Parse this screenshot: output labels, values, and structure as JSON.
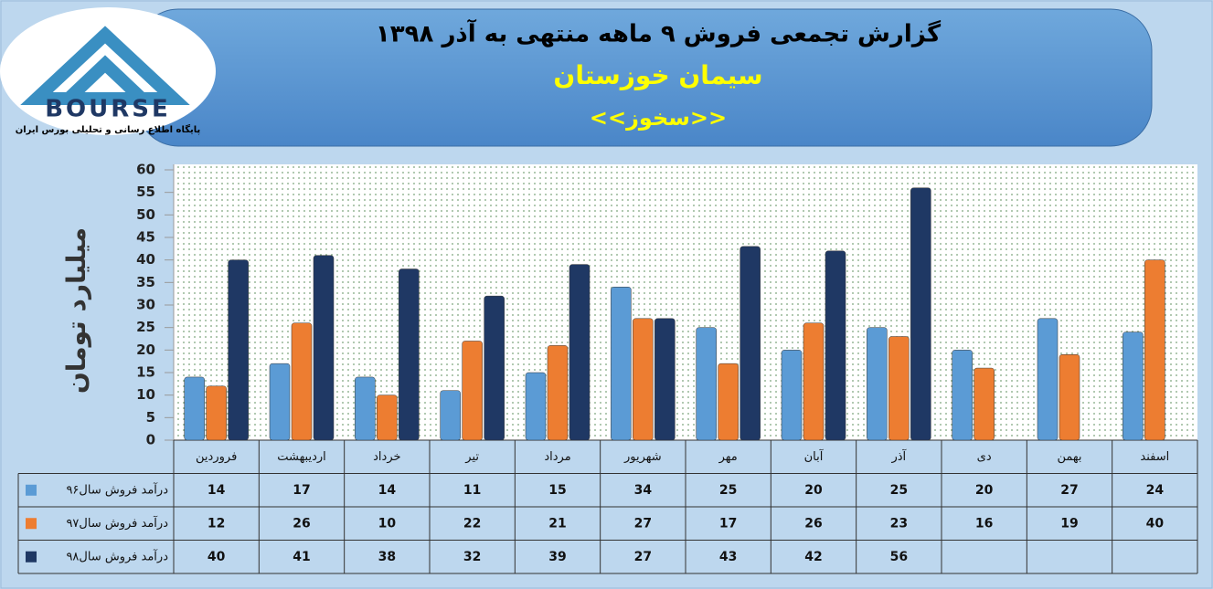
{
  "logo": {
    "name": "BOURSE",
    "caption": "پایگاه اطلاع رسانی و تحلیلی بورس ایران"
  },
  "chart_data": {
    "type": "bar",
    "title": "گزارش تجمعی فروش ۹ ماهه منتهی به آذر ۱۳۹۸",
    "subtitle": "سیمان خوزستان",
    "ticker": "<<سخوز>>",
    "y_label": "میلیارد تومان",
    "categories": [
      "فروردین",
      "اردیبهشت",
      "خرداد",
      "تیر",
      "مرداد",
      "شهریور",
      "مهر",
      "آبان",
      "آذر",
      "دی",
      "بهمن",
      "اسفند"
    ],
    "series": [
      {
        "name": "درآمد فروش سال۹۶",
        "color": "#5b9bd5",
        "values": [
          14,
          17,
          14,
          11,
          15,
          34,
          25,
          20,
          25,
          20,
          27,
          24
        ]
      },
      {
        "name": "درآمد فروش سال۹۷",
        "color": "#ed7d31",
        "values": [
          12,
          26,
          10,
          22,
          21,
          27,
          17,
          26,
          23,
          16,
          19,
          40
        ]
      },
      {
        "name": "درآمد فروش سال۹۸",
        "color": "#1f3864",
        "values": [
          40,
          41,
          38,
          32,
          39,
          27,
          43,
          42,
          56,
          null,
          null,
          null
        ]
      }
    ],
    "ylim": [
      0,
      60
    ],
    "yticks": [
      0,
      5,
      10,
      15,
      20,
      25,
      30,
      35,
      40,
      45,
      50,
      55,
      60
    ],
    "grid": false
  }
}
